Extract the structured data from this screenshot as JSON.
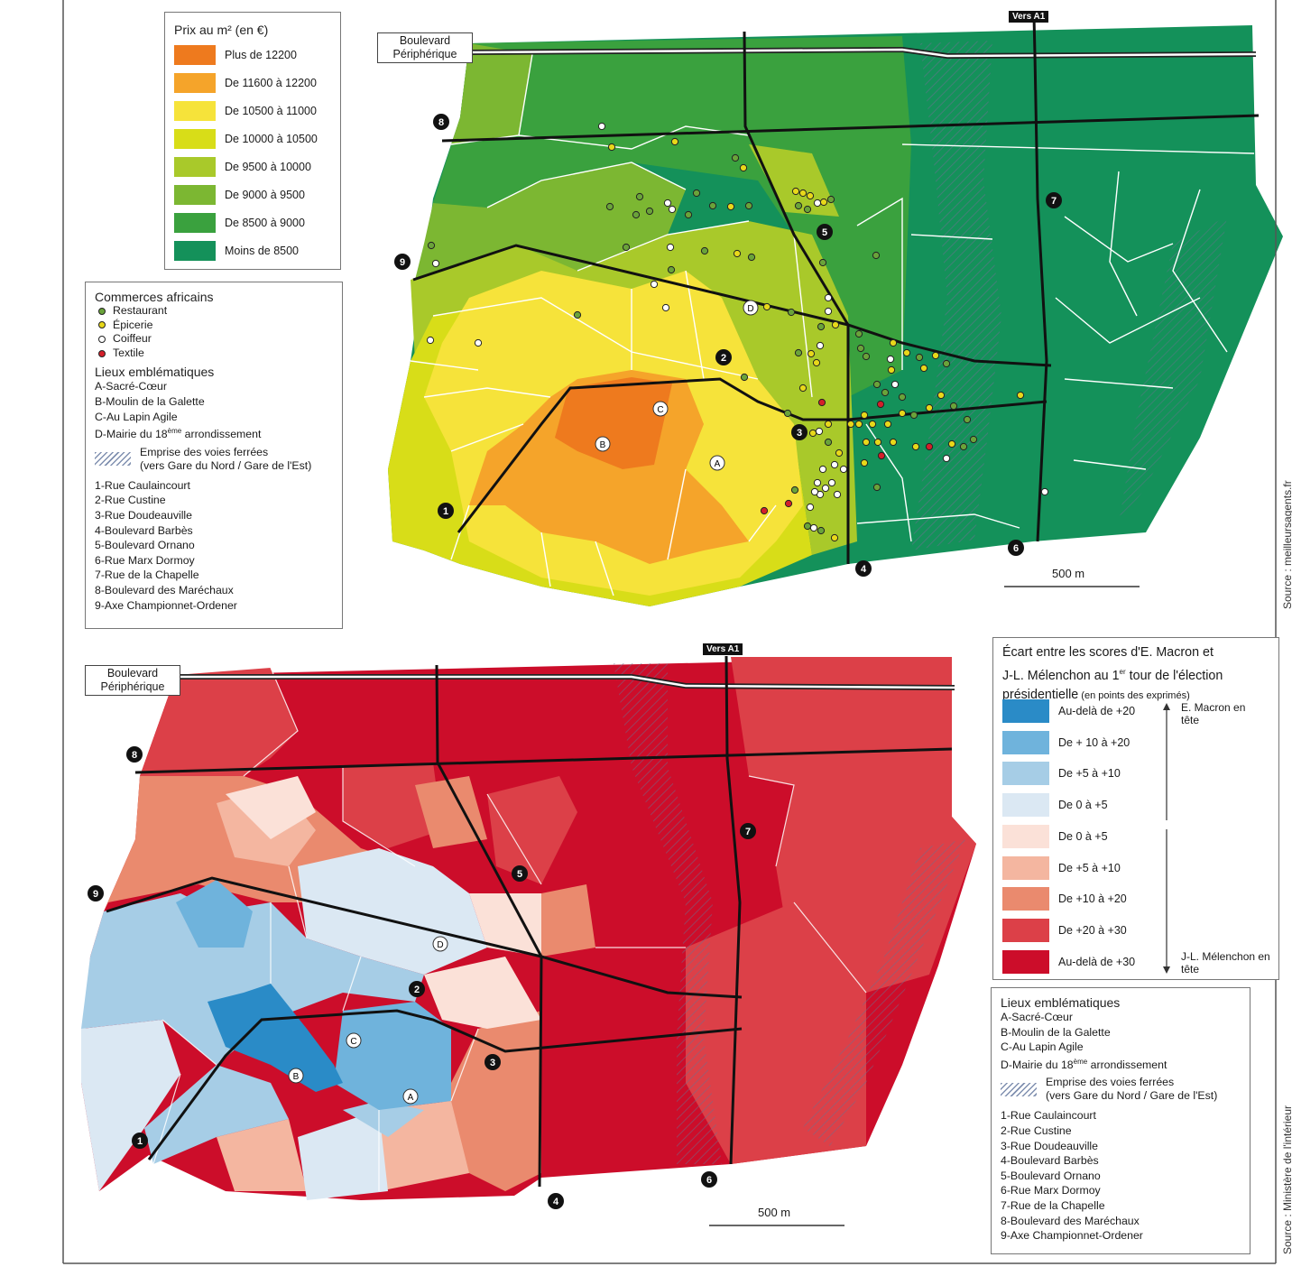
{
  "map_top": {
    "legend_price": {
      "title": "Prix au m² (en €)",
      "classes": [
        {
          "label": "Plus de 12200",
          "color": "#ee7a1e"
        },
        {
          "label": "De 11600 à 12200",
          "color": "#f5a42a"
        },
        {
          "label": "De 10500 à 11000",
          "color": "#f6e33a"
        },
        {
          "label": "De 10000 à 10500",
          "color": "#d8dd18"
        },
        {
          "label": "De 9500 à 10000",
          "color": "#a9c92a"
        },
        {
          "label": "De 9000 à 9500",
          "color": "#7cb732"
        },
        {
          "label": "De 8500 à 9000",
          "color": "#3aa13e"
        },
        {
          "label": "Moins de 8500",
          "color": "#14915a"
        }
      ]
    },
    "legend_commerces": {
      "title": "Commerces africains",
      "items": [
        {
          "label": "Restaurant",
          "color": "#6aa33a"
        },
        {
          "label": "Épicerie",
          "color": "#e8d81a"
        },
        {
          "label": "Coiffeur",
          "color": "#ffffff"
        },
        {
          "label": "Textile",
          "color": "#d41f2a"
        }
      ]
    },
    "road_label": "Boulevard Périphérique",
    "vers_a1": "Vers A1",
    "scale": "500 m",
    "source": "Source : meilleursagents.fr"
  },
  "map_bottom": {
    "legend_ecart": {
      "title": "Écart entre les scores d'E. Macron et J-L. Mélenchon au 1er tour de l'élection présidentielle",
      "title_line1": "Écart entre les scores d'E. Macron et",
      "title_line2_a": "J-L. Mélenchon au 1",
      "title_line2_sup": "er",
      "title_line2_b": " tour de l'élection",
      "title_line3_a": "présidentielle",
      "title_line3_small": " (en points des exprimés)",
      "classes": [
        {
          "label": "Au-delà de +20",
          "color": "#2a8bc7"
        },
        {
          "label": "De + 10 à +20",
          "color": "#6fb3dc"
        },
        {
          "label": "De +5 à +10",
          "color": "#a6cde6"
        },
        {
          "label": "De 0 à +5",
          "color": "#dbe8f3"
        },
        {
          "label": "De 0 à +5",
          "color": "#fbe1d8"
        },
        {
          "label": "De +5 à +10",
          "color": "#f4b6a0"
        },
        {
          "label": "De +10 à +20",
          "color": "#ea8a6e"
        },
        {
          "label": "De +20 à +30",
          "color": "#dc4048"
        },
        {
          "label": "Au-delà de +30",
          "color": "#cc0d2a"
        }
      ],
      "macron_label": "E. Macron en tête",
      "melenchon_label": "J-L. Mélenchon en tête"
    },
    "road_label": "Boulevard Périphérique",
    "vers_a1": "Vers A1",
    "scale": "500 m",
    "source": "Source : Ministère de l'intérieur"
  },
  "legend_lieux": {
    "title": "Lieux emblématiques",
    "places": [
      "A-Sacré-Cœur",
      "B-Moulin de la Galette",
      "C-Au Lapin Agile"
    ],
    "place_d_a": "D-Mairie du 18",
    "place_d_sup": "ème",
    "place_d_b": " arrondissement",
    "hatch_line1": "Emprise des voies ferrées",
    "hatch_line2": "(vers Gare du Nord / Gare de l'Est)",
    "streets": [
      "1-Rue Caulaincourt",
      "2-Rue Custine",
      "3-Rue Doudeauville",
      "4-Boulevard Barbès",
      "5-Boulevard Ornano",
      "6-Rue Marx Dormoy",
      "7-Rue de la Chapelle",
      "8-Boulevard des Maréchaux",
      "9-Axe Championnet-Ordener"
    ]
  },
  "markers": {
    "streets": [
      "1",
      "2",
      "3",
      "4",
      "5",
      "6",
      "7",
      "8",
      "9"
    ],
    "places": [
      "A",
      "B",
      "C",
      "D"
    ]
  }
}
